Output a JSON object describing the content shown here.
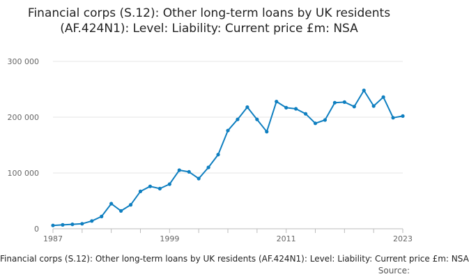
{
  "chart_data": {
    "type": "line",
    "title": "Financial corps (S.12): Other long-term loans by UK residents (AF.424N1): Level: Liability: Current price £m: NSA",
    "xlabel": "",
    "ylabel": "",
    "x": [
      1987,
      1988,
      1989,
      1990,
      1991,
      1992,
      1993,
      1994,
      1995,
      1996,
      1997,
      1998,
      1999,
      2000,
      2001,
      2002,
      2003,
      2004,
      2005,
      2006,
      2007,
      2008,
      2009,
      2010,
      2011,
      2012,
      2013,
      2014,
      2015,
      2016,
      2017,
      2018,
      2019,
      2020,
      2021,
      2022,
      2023
    ],
    "series": [
      {
        "name": "Financial corps (S.12): Other long-term loans by UK residents (AF.424N1): Level: Liability: Current price £m: NSA",
        "values": [
          6000,
          7000,
          8000,
          9000,
          14000,
          22000,
          45000,
          32000,
          43000,
          67000,
          76000,
          72000,
          80000,
          105000,
          102000,
          90000,
          110000,
          133000,
          176000,
          196000,
          218000,
          196000,
          174000,
          228000,
          217000,
          215000,
          206000,
          189000,
          195000,
          226000,
          227000,
          219000,
          248000,
          220000,
          236000,
          199000,
          202000
        ]
      }
    ],
    "xlim": [
      1987,
      2023
    ],
    "ylim": [
      0,
      300000
    ],
    "x_ticks": [
      1987,
      1999,
      2011,
      2023
    ],
    "x_tick_labels": [
      "1987",
      "1999",
      "2011",
      "2023"
    ],
    "y_ticks": [
      0,
      100000,
      200000,
      300000
    ],
    "y_tick_labels": [
      "0",
      "100 000",
      "200 000",
      "300 000"
    ],
    "grid": "horizontal",
    "line_color": "#0f7fc0",
    "legend_placement": "bottom",
    "source_label": "Source:"
  }
}
